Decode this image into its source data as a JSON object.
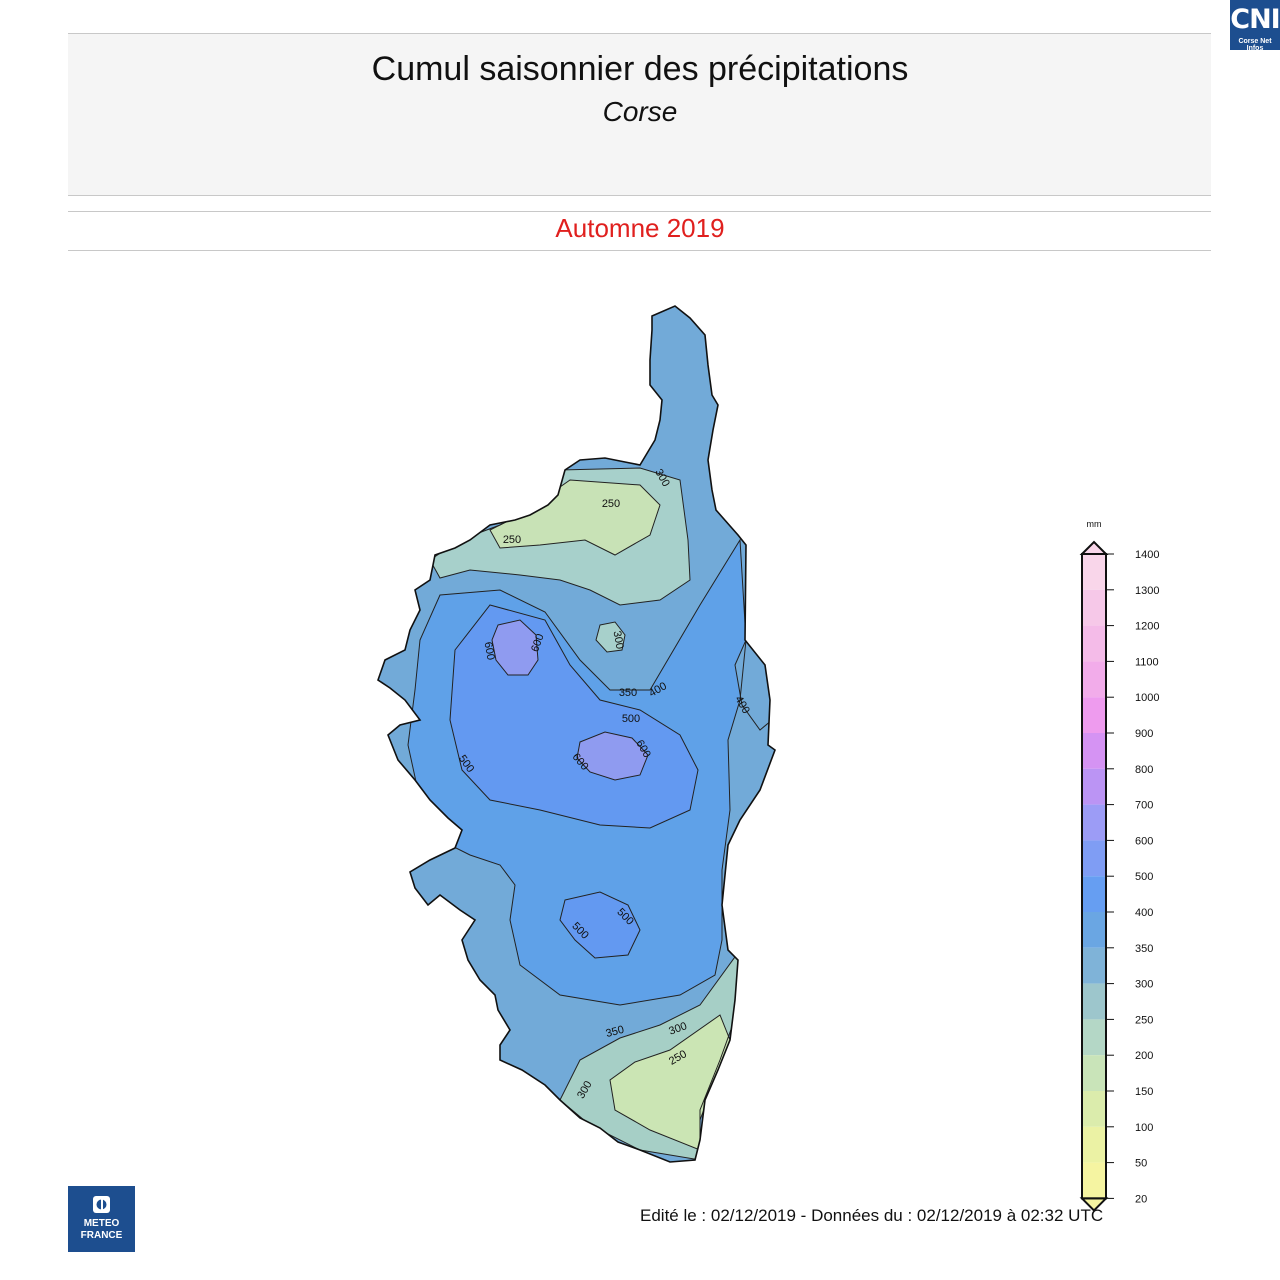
{
  "header": {
    "title": "Cumul saisonnier des précipitations",
    "subtitle": "Corse"
  },
  "period": "Automne 2019",
  "badge": {
    "letters": "CNI",
    "tagline": "Corse Net Infos"
  },
  "logo": {
    "line1": "METEO",
    "line2": "FRANCE",
    "icon": "meteo-france-logo-icon"
  },
  "footer": "Edité le : 02/12/2019 - Données du : 02/12/2019 à 02:32 UTC",
  "legend": {
    "unit": "mm",
    "ticks": [
      "1400",
      "1300",
      "1200",
      "1100",
      "1000",
      "900",
      "800",
      "700",
      "600",
      "500",
      "400",
      "350",
      "300",
      "250",
      "200",
      "150",
      "100",
      "50",
      "20"
    ],
    "colors": [
      "#f9d6ea",
      "#f6c8e8",
      "#f4bbe8",
      "#f2acea",
      "#ee9bee",
      "#d593f3",
      "#bb94f4",
      "#9c9cf6",
      "#7f9df4",
      "#669ef2",
      "#6aa6e3",
      "#7fb3d8",
      "#9dc6cc",
      "#b4d7c6",
      "#c9e4b9",
      "#dbecac",
      "#ebf2a4",
      "#f5f4a1"
    ]
  },
  "map": {
    "contour_labels": [
      "300",
      "250",
      "250",
      "300",
      "600",
      "600",
      "350",
      "400",
      "500",
      "400",
      "500",
      "600",
      "600",
      "500",
      "500",
      "350",
      "300",
      "250",
      "300"
    ],
    "shading": {
      "outer": "#72aad8",
      "north_low": "#a7d0cb",
      "north_dry": "#c8e2b6",
      "core": "#5fa1e8",
      "center": "#6399f1",
      "max": "#8f9bf0",
      "south_low": "#a6cfc6",
      "south_dry": "#cbe5b4"
    }
  }
}
